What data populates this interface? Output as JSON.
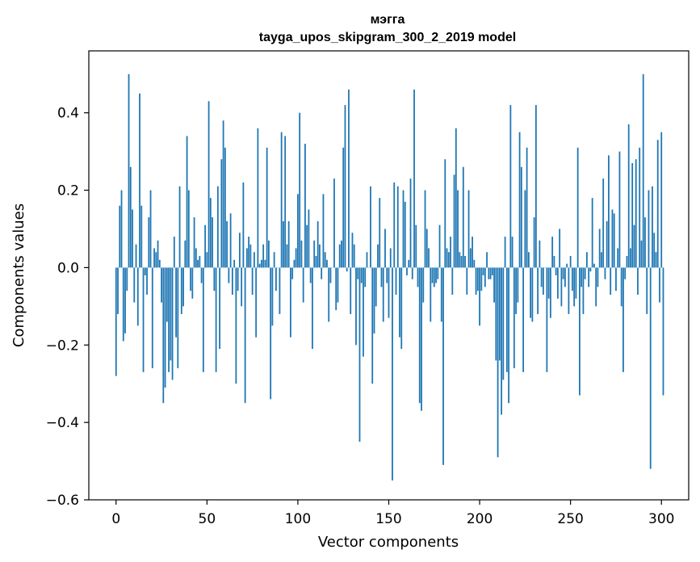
{
  "chart_data": {
    "type": "bar",
    "title": "мэгга",
    "subtitle": "tayga_upos_skipgram_300_2_2019 model",
    "xlabel": "Vector components",
    "ylabel": "Components values",
    "xlim": [
      -15,
      315
    ],
    "ylim": [
      -0.6,
      0.56
    ],
    "xticks": [
      0,
      50,
      100,
      150,
      200,
      250,
      300
    ],
    "xtick_labels": [
      "0",
      "50",
      "100",
      "150",
      "200",
      "250",
      "300"
    ],
    "yticks": [
      -0.6,
      -0.4,
      -0.2,
      0.0,
      0.2,
      0.4
    ],
    "ytick_labels": [
      "−0.6",
      "−0.4",
      "−0.2",
      "0.0",
      "0.2",
      "0.4"
    ],
    "bar_color": "#1f77b4",
    "grid": false,
    "legend": "none",
    "values": [
      -0.28,
      -0.12,
      0.16,
      0.2,
      -0.19,
      -0.17,
      -0.06,
      0.5,
      0.26,
      0.15,
      -0.09,
      0.06,
      -0.15,
      0.45,
      0.16,
      -0.27,
      -0.02,
      -0.07,
      0.13,
      0.2,
      -0.26,
      0.05,
      0.04,
      0.07,
      0.02,
      -0.09,
      -0.35,
      -0.31,
      -0.14,
      -0.27,
      -0.24,
      -0.29,
      0.08,
      -0.18,
      -0.26,
      0.21,
      -0.12,
      -0.1,
      0.07,
      0.34,
      0.2,
      -0.06,
      -0.08,
      0.13,
      0.05,
      0.02,
      0.03,
      -0.04,
      -0.27,
      0.11,
      0.04,
      0.43,
      0.18,
      0.13,
      -0.06,
      -0.27,
      0.21,
      -0.21,
      0.28,
      0.38,
      0.31,
      0.12,
      -0.04,
      0.14,
      -0.07,
      0.02,
      -0.3,
      -0.06,
      0.09,
      -0.1,
      0.22,
      -0.35,
      0.05,
      0.08,
      0.06,
      -0.07,
      0.04,
      -0.18,
      0.36,
      0.01,
      0.02,
      0.06,
      0.02,
      0.31,
      0.07,
      -0.34,
      -0.15,
      0.04,
      -0.06,
      0.0,
      -0.12,
      0.35,
      0.12,
      0.34,
      0.06,
      0.12,
      -0.18,
      -0.03,
      0.02,
      0.05,
      0.19,
      0.4,
      0.07,
      -0.09,
      0.32,
      0.11,
      0.15,
      -0.04,
      -0.21,
      0.07,
      0.03,
      0.12,
      0.06,
      -0.03,
      0.19,
      0.04,
      0.02,
      -0.14,
      -0.04,
      0.0,
      0.23,
      -0.11,
      -0.09,
      0.06,
      0.07,
      0.31,
      0.42,
      -0.01,
      0.46,
      -0.12,
      0.09,
      0.06,
      -0.2,
      -0.03,
      -0.45,
      -0.04,
      -0.23,
      -0.05,
      0.04,
      0.0,
      0.21,
      -0.3,
      -0.17,
      -0.1,
      0.06,
      0.18,
      -0.05,
      -0.14,
      0.1,
      -0.04,
      -0.13,
      0.05,
      -0.55,
      0.22,
      -0.07,
      0.21,
      -0.18,
      -0.21,
      0.2,
      0.17,
      -0.02,
      0.02,
      0.23,
      -0.03,
      0.46,
      0.11,
      -0.05,
      -0.35,
      -0.37,
      -0.09,
      0.2,
      0.1,
      0.05,
      -0.14,
      -0.04,
      -0.05,
      -0.04,
      -0.03,
      0.11,
      -0.14,
      -0.51,
      0.28,
      0.05,
      0.04,
      0.08,
      -0.07,
      0.24,
      0.36,
      0.2,
      0.04,
      0.03,
      0.26,
      0.03,
      -0.07,
      0.2,
      0.05,
      0.08,
      0.02,
      -0.07,
      -0.06,
      -0.15,
      -0.06,
      -0.02,
      -0.05,
      0.04,
      -0.03,
      -0.03,
      -0.02,
      -0.09,
      -0.24,
      -0.49,
      -0.24,
      -0.38,
      -0.29,
      0.08,
      -0.27,
      -0.35,
      0.42,
      0.08,
      -0.26,
      -0.12,
      -0.09,
      0.35,
      0.26,
      -0.27,
      0.2,
      0.31,
      0.04,
      -0.13,
      -0.14,
      0.13,
      0.42,
      -0.12,
      0.07,
      -0.05,
      -0.07,
      0.0,
      -0.27,
      -0.08,
      -0.13,
      0.08,
      0.03,
      -0.02,
      -0.08,
      0.1,
      -0.1,
      -0.03,
      -0.05,
      0.01,
      -0.12,
      0.03,
      -0.06,
      -0.1,
      -0.08,
      0.31,
      -0.33,
      -0.05,
      -0.12,
      -0.03,
      0.04,
      -0.05,
      -0.01,
      0.18,
      0.01,
      -0.1,
      -0.05,
      0.1,
      0.04,
      0.23,
      -0.03,
      0.12,
      0.29,
      -0.07,
      0.15,
      0.14,
      -0.06,
      0.05,
      0.3,
      -0.1,
      -0.27,
      -0.03,
      0.03,
      0.37,
      0.05,
      0.27,
      0.11,
      0.28,
      -0.07,
      0.31,
      0.07,
      0.5,
      0.13,
      -0.12,
      0.2,
      -0.52,
      0.21,
      0.09,
      0.04,
      0.33,
      -0.09,
      0.35,
      -0.33
    ]
  }
}
